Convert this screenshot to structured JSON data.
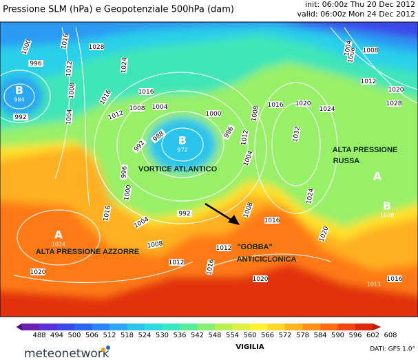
{
  "header": {
    "title": "Pressione SLM (hPa) e Geopotenziale 500hPa (dam)",
    "init": "init: 06:00z Thu 20 Dec 2012",
    "valid": "valid: 06:00z Mon 24 Dec 2012"
  },
  "centers": [
    {
      "letter": "B",
      "value": "984"
    },
    {
      "letter": "B",
      "value": "972"
    },
    {
      "letter": "A",
      "value": "1024"
    },
    {
      "letter": "A"
    },
    {
      "letter": "B",
      "value": "1008"
    },
    {
      "value": "1011"
    }
  ],
  "annotations": [
    "VORTICE ATLANTICO",
    "ALTA PRESSIONE",
    "RUSSA",
    "ALTA PRESSIONE AZZORRE",
    "\"GOBBA\"",
    "ANTICICLONICA"
  ],
  "isobars": [
    "1000",
    "996",
    "1016",
    "1028",
    "1024",
    "1012",
    "1008",
    "1004",
    "992",
    "1016",
    "1016",
    "1012",
    "1008",
    "1004",
    "1000",
    "988",
    "992",
    "996",
    "1012",
    "1008",
    "1004",
    "996",
    "1000",
    "1004",
    "1008",
    "1012",
    "992",
    "1016",
    "1020",
    "1016",
    "1012",
    "1008",
    "1016",
    "1020",
    "1024",
    "1020",
    "1016",
    "1024",
    "1032",
    "1008",
    "1012",
    "1020",
    "1028",
    "1008",
    "1004",
    "1020",
    "1016"
  ],
  "colorbar": {
    "ticks": [
      "488",
      "494",
      "500",
      "506",
      "512",
      "518",
      "524",
      "530",
      "536",
      "542",
      "548",
      "554",
      "560",
      "566",
      "572",
      "578",
      "584",
      "590",
      "596",
      "602",
      "608"
    ],
    "colors": [
      "#4a0a7a",
      "#6a1fb0",
      "#5a2ed8",
      "#3a48e8",
      "#2a66f0",
      "#2a86f5",
      "#2aa6f2",
      "#2ac4ec",
      "#2adce0",
      "#38e8c0",
      "#58ec98",
      "#88f070",
      "#b8f050",
      "#e0f040",
      "#fff030",
      "#ffd828",
      "#ffb420",
      "#ff9018",
      "#ff6a12",
      "#f2440e",
      "#dc2a0c",
      "#c01a0a"
    ]
  },
  "footer": {
    "event": "VIGILIA",
    "source": "DATI: GFS 1.0°",
    "brand": "meteonetwork"
  }
}
